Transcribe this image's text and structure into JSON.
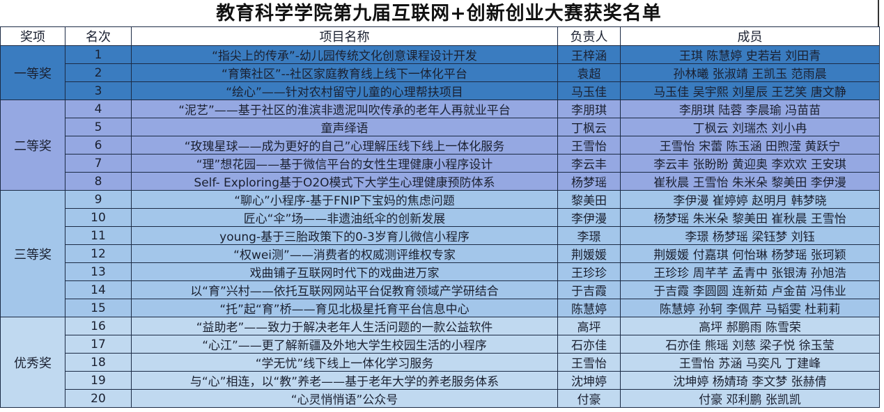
{
  "title": "教育科学学院第九届互联网+创新创业大赛获奖名单",
  "headers": [
    "奖项",
    "名次",
    "项目名称",
    "负责人",
    "成员"
  ],
  "groups": [
    {
      "award": "一等奖",
      "color": "#3a7cc0",
      "rows": [
        {
          "rank": "1",
          "project": "“指尖上的传承”-幼儿园传统文化创意课程设计开发",
          "leader": "王梓涵",
          "members": "王琪 陈慧婷 史若岩 刘田青"
        },
        {
          "rank": "2",
          "project": "“育策社区”--社区家庭教育线上线下一体化平台",
          "leader": "袁超",
          "members": "孙林曦 张淑靖 王凯玉 范雨晨"
        },
        {
          "rank": "3",
          "project": "“绘心”——针对农村留守儿童的心理帮扶项目",
          "leader": "马玉佳",
          "members": "马玉佳 吴宇熙 刘星辰 王艺笑 唐文静"
        }
      ]
    },
    {
      "award": "二等奖",
      "color": "#95a8e2",
      "rows": [
        {
          "rank": "4",
          "project": "“泥艺”——基于社区的淮滨非遗泥叫吹传承的老年人再就业平台",
          "leader": "李朋琪",
          "members": "李朋琪 陆蓉 李晨瑜 冯苗苗"
        },
        {
          "rank": "5",
          "project": "童声绎语",
          "leader": "丁枫云",
          "members": "丁枫云 刘瑞杰 刘小冉"
        },
        {
          "rank": "6",
          "project": "“玫瑰星球——成为更好的自己”心理解压线下线上一体化服务",
          "leader": "王雪怡",
          "members": "王雪怡 宋蕾 陈玉涵 田煦滢 黄跃宁"
        },
        {
          "rank": "7",
          "project": "“理”想花园——基于微信平台的女性生理健康小程序设计",
          "leader": "李云丰",
          "members": "李云丰 张盼盼 黄迎奥 李欢欢 王安琪"
        },
        {
          "rank": "8",
          "project": "Self- Exploring基于O2O模式下大学生心理健康预防体系",
          "leader": "杨梦瑶",
          "members": "崔秋晨 王雪怡 朱米朵 黎美田 李伊漫"
        }
      ]
    },
    {
      "award": "三等奖",
      "color": "#a3c6ea",
      "rows": [
        {
          "rank": "9",
          "project": "“聊心”小程序-基于FNIP下宝妈的焦虑问题",
          "leader": "黎美田",
          "members": "李伊漫 崔婷婷 赵明月 韩梦晓"
        },
        {
          "rank": "10",
          "project": "匠心“伞”场——非遗油纸伞的创新发展",
          "leader": "李伊漫",
          "members": "杨梦瑶 朱米朵 黎美田 崔秋晨 王雪怡"
        },
        {
          "rank": "11",
          "project": "young-基于三胎政策下的0-3岁育儿微信小程序",
          "leader": "李璟",
          "members": "李璟 杨梦瑶 梁钰梦 刘钰"
        },
        {
          "rank": "12",
          "project": "“权wei测”——消费者的权威测评维权专家",
          "leader": "荆媛媛",
          "members": "荆媛媛 付嘉琪 何怡琳 杨梦瑶 张珂颖"
        },
        {
          "rank": "13",
          "project": "戏曲铺子互联网时代下的戏曲进万家",
          "leader": "王珍珍",
          "members": "王珍珍 周芊芊 孟青中 张银涛 孙旭浩"
        },
        {
          "rank": "14",
          "project": "以“育”兴村——依托互联网网站平台促教育领域产学研结合",
          "leader": "于吉霞",
          "members": "于吉霞 李圆圆 连新茹 卢金苗 冯伟业"
        },
        {
          "rank": "15",
          "project": "“托”起“育”桥——育见北极星托育平台信息中心",
          "leader": "陈慧婷",
          "members": "陈慧婷 孙轲 李佩芹 马韬雯 杜莉莉"
        }
      ]
    },
    {
      "award": "优秀奖",
      "color": "#c0d9f0",
      "rows": [
        {
          "rank": "16",
          "project": "“益助老”——致力于解决老年人生活问题的一款公益软件",
          "leader": "高坪",
          "members": "高坪 郝鹏雨 陈雪荣"
        },
        {
          "rank": "17",
          "project": "“心江”——更了解新疆及外地大学生校园生活的小程序",
          "leader": "石亦佳",
          "members": "石亦佳 熊瑶 刘慈 梁子悦 徐玉莹"
        },
        {
          "rank": "18",
          "project": "“学无忧”线下线上一体化学习服务",
          "leader": "王雪怡",
          "members": "王雪怡 苏涵 马奕凡 丁建峰"
        },
        {
          "rank": "19",
          "project": "与“心”相连，以“教”养老——基于老年大学的养老服务体系",
          "leader": "沈坤婷",
          "members": "沈坤婷 杨婧琦 李文梦 张赫倩"
        },
        {
          "rank": "20",
          "project": "“心灵悄悄语”公众号",
          "leader": "付豪",
          "members": "付豪 邓利鹏 张凯凯"
        }
      ]
    }
  ]
}
